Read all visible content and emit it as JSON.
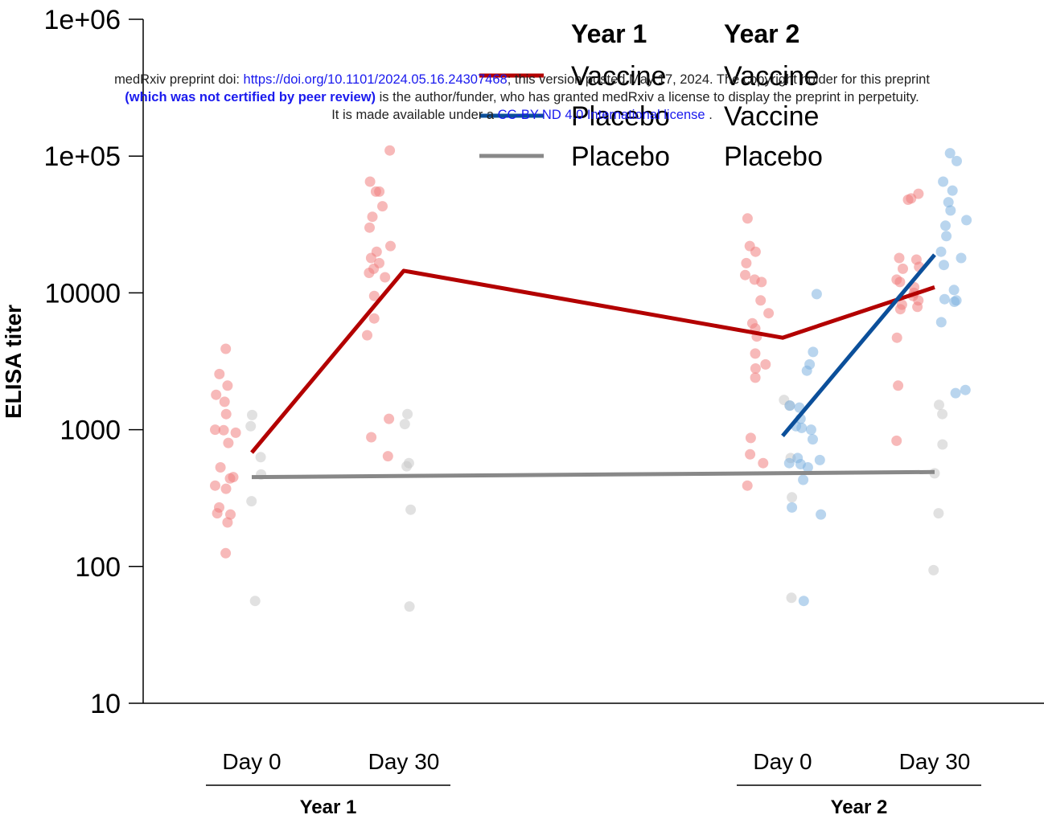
{
  "banner": {
    "line1_pre": "medRxiv preprint doi: ",
    "line1_link": "https://doi.org/10.1101/2024.05.16.24307468",
    "line1_post": "; this version posted May 17, 2024. The copyright holder for this preprint",
    "line2_bold": "(which was not certified by peer review)",
    "line2_post": " is the author/funder, who has granted medRxiv a license to display the preprint in perpetuity.",
    "line3_pre": "It is made available under a ",
    "line3_link": "CC-BY-ND 4.0 International license",
    "line3_post": " ."
  },
  "colors": {
    "vaccine_year1": "#b30000",
    "vaccine_year2": "#0b4f9a",
    "placebo": "#888888",
    "vaccine_point": "#f08080",
    "vaccine2_point": "#7fb2e0",
    "placebo_point": "#c8c8c8"
  },
  "chart_data": {
    "type": "scatter",
    "title": "",
    "xlabel": "",
    "ylabel": "ELISA titer",
    "y_scale": "log10",
    "ylim": [
      10,
      1000000
    ],
    "yticks": [
      10,
      100,
      1000,
      10000,
      100000,
      1000000
    ],
    "ytick_labels": [
      "10",
      "100",
      "1000",
      "10000",
      "1e+05",
      "1e+06"
    ],
    "groups": [
      {
        "label": "Year 1",
        "ticks": [
          "Day 0",
          "Day 30"
        ]
      },
      {
        "label": "Year 2",
        "ticks": [
          "Day 0",
          "Day 30"
        ]
      }
    ],
    "legend": {
      "position": "top",
      "headers": [
        "Year 1",
        "Year 2"
      ],
      "entries": [
        {
          "color": "#b30000",
          "year1": "Vaccine",
          "year2": "Vaccine"
        },
        {
          "color": "#0b4f9a",
          "year1": "Placebo",
          "year2": "Vaccine"
        },
        {
          "color": "#888888",
          "year1": "Placebo",
          "year2": "Placebo"
        }
      ]
    },
    "lines": [
      {
        "key": "vac-vac",
        "color": "#b30000",
        "x": [
          "Y1 Day 0",
          "Y1 Day 30",
          "Y2 Day 0",
          "Y2 Day 30"
        ],
        "y": [
          680,
          14500,
          4700,
          11000
        ]
      },
      {
        "key": "plc-vac",
        "color": "#0b4f9a",
        "x": [
          "Y2 Day 0",
          "Y2 Day 30"
        ],
        "y": [
          900,
          19000
        ]
      },
      {
        "key": "plc-plc",
        "color": "#888888",
        "x": [
          "Y1 Day 0",
          "Y2 Day 30"
        ],
        "y": [
          450,
          490
        ]
      }
    ],
    "points": [
      {
        "group": "vaccine",
        "timepoint": "Y1 Day 0",
        "values": [
          3900,
          2100,
          1800,
          2550,
          1600,
          1300,
          1000,
          950,
          800,
          990,
          530,
          450,
          440,
          390,
          370,
          270,
          240,
          245,
          210,
          125
        ]
      },
      {
        "group": "placebo",
        "timepoint": "Y1 Day 0",
        "values": [
          1280,
          1060,
          630,
          470,
          300,
          56
        ]
      },
      {
        "group": "vaccine",
        "timepoint": "Y1 Day 30",
        "values": [
          110000,
          65000,
          55000,
          55000,
          43000,
          36000,
          30000,
          22000,
          20000,
          18000,
          16500,
          15000,
          14000,
          13000,
          9500,
          6500,
          4900,
          1200,
          880,
          640
        ]
      },
      {
        "group": "placebo",
        "timepoint": "Y1 Day 30",
        "values": [
          1300,
          1100,
          570,
          540,
          260,
          51
        ]
      },
      {
        "group": "vaccine",
        "timepoint": "Y2 Day 0",
        "values": [
          35000,
          22000,
          20000,
          16500,
          13500,
          12500,
          12000,
          8800,
          7100,
          6000,
          5500,
          4800,
          3600,
          3000,
          2800,
          2400,
          870,
          660,
          570,
          390
        ]
      },
      {
        "group": "placebo",
        "timepoint": "Y2 Day 0",
        "values": [
          1650,
          1500,
          620,
          320,
          59
        ]
      },
      {
        "group": "vaccine2",
        "timepoint": "Y2 Day 0",
        "values": [
          9800,
          3700,
          3000,
          2700,
          1500,
          1450,
          1200,
          1060,
          1030,
          1000,
          850,
          620,
          600,
          570,
          560,
          530,
          430,
          270,
          240,
          56
        ]
      },
      {
        "group": "vaccine",
        "timepoint": "Y2 Day 30",
        "values": [
          53000,
          49000,
          48000,
          18000,
          17500,
          15500,
          15000,
          12500,
          12000,
          11000,
          10000,
          9500,
          8800,
          8200,
          7900,
          7600,
          4700,
          2100,
          830
        ]
      },
      {
        "group": "placebo",
        "timepoint": "Y2 Day 30",
        "values": [
          1520,
          1300,
          780,
          480,
          245,
          94
        ]
      },
      {
        "group": "vaccine2",
        "timepoint": "Y2 Day 30",
        "values": [
          105000,
          92000,
          65000,
          56000,
          46000,
          40000,
          34000,
          31000,
          26000,
          20000,
          18000,
          16000,
          10500,
          9000,
          8800,
          8600,
          6100,
          1950,
          1850
        ]
      }
    ]
  }
}
